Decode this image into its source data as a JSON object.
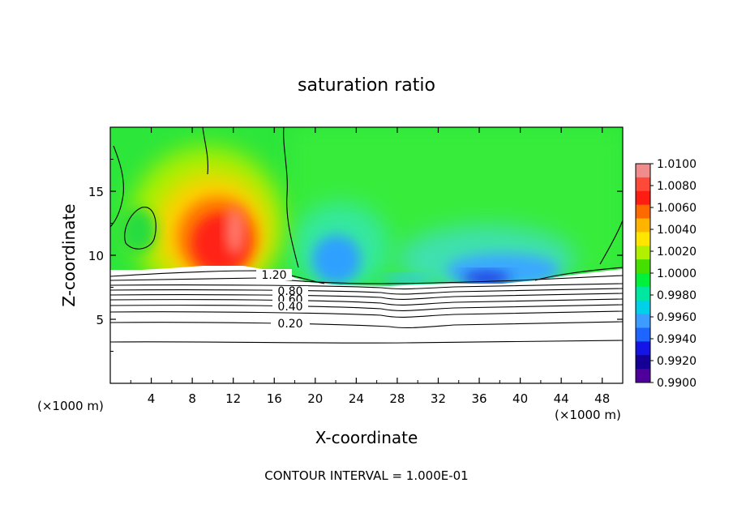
{
  "chart_data": {
    "type": "heatmap",
    "title": "saturation ratio",
    "xlabel": "X-coordinate",
    "ylabel": "Z-coordinate",
    "x_unit_left": "(×1000 m)",
    "x_unit_right": "(×1000 m)",
    "xlim": [
      0,
      50
    ],
    "ylim": [
      0,
      20
    ],
    "x_ticks": [
      4,
      8,
      12,
      16,
      20,
      24,
      28,
      32,
      36,
      40,
      44,
      48
    ],
    "x_tick_labels": [
      "4",
      "8",
      "12",
      "16",
      "20",
      "24",
      "28",
      "32",
      "36",
      "40",
      "44",
      "48"
    ],
    "y_ticks": [
      5,
      10,
      15
    ],
    "y_tick_labels": [
      "5",
      "10",
      "15"
    ],
    "colorbar": {
      "range": [
        0.99,
        1.01
      ],
      "ticks": [
        "1.0100",
        "1.0080",
        "1.0060",
        "1.0040",
        "1.0020",
        "1.0000",
        "0.9980",
        "0.9960",
        "0.9940",
        "0.9920",
        "0.9900"
      ],
      "colors": [
        "#f08c8c",
        "#ff4a3a",
        "#ff1c12",
        "#ff6a00",
        "#ffb400",
        "#ffe600",
        "#b0f000",
        "#46e000",
        "#00f03c",
        "#00e8a0",
        "#00d0e8",
        "#3c9cff",
        "#1e64ff",
        "#1414e6",
        "#140096",
        "#50009a"
      ]
    },
    "contour_labels": [
      {
        "text": "1.20",
        "x": 15,
        "z": 8.4
      },
      {
        "text": "0.80",
        "x": 17.5,
        "z": 7.1
      },
      {
        "text": "0.60",
        "x": 17.5,
        "z": 6.6
      },
      {
        "text": "0.40",
        "x": 17.5,
        "z": 6.0
      },
      {
        "text": "0.20",
        "x": 17.5,
        "z": 4.7
      }
    ],
    "contour_lines_z": [
      3.1,
      4.7,
      5.5,
      6.0,
      6.4,
      6.8,
      7.1,
      7.4,
      7.65
    ],
    "contour_interval_text": "CONTOUR INTERVAL = 1.000E-01",
    "features": [
      {
        "name": "supersaturated-core",
        "x_center": 11,
        "z_center": 11.5,
        "max_value": 1.0072
      },
      {
        "name": "subsaturated-region-1",
        "x_center": 22.5,
        "z_center": 9,
        "min_value": 0.9935
      },
      {
        "name": "subsaturated-region-2",
        "x_center": 37,
        "z_center": 8.5,
        "min_value": 0.9915
      }
    ]
  }
}
